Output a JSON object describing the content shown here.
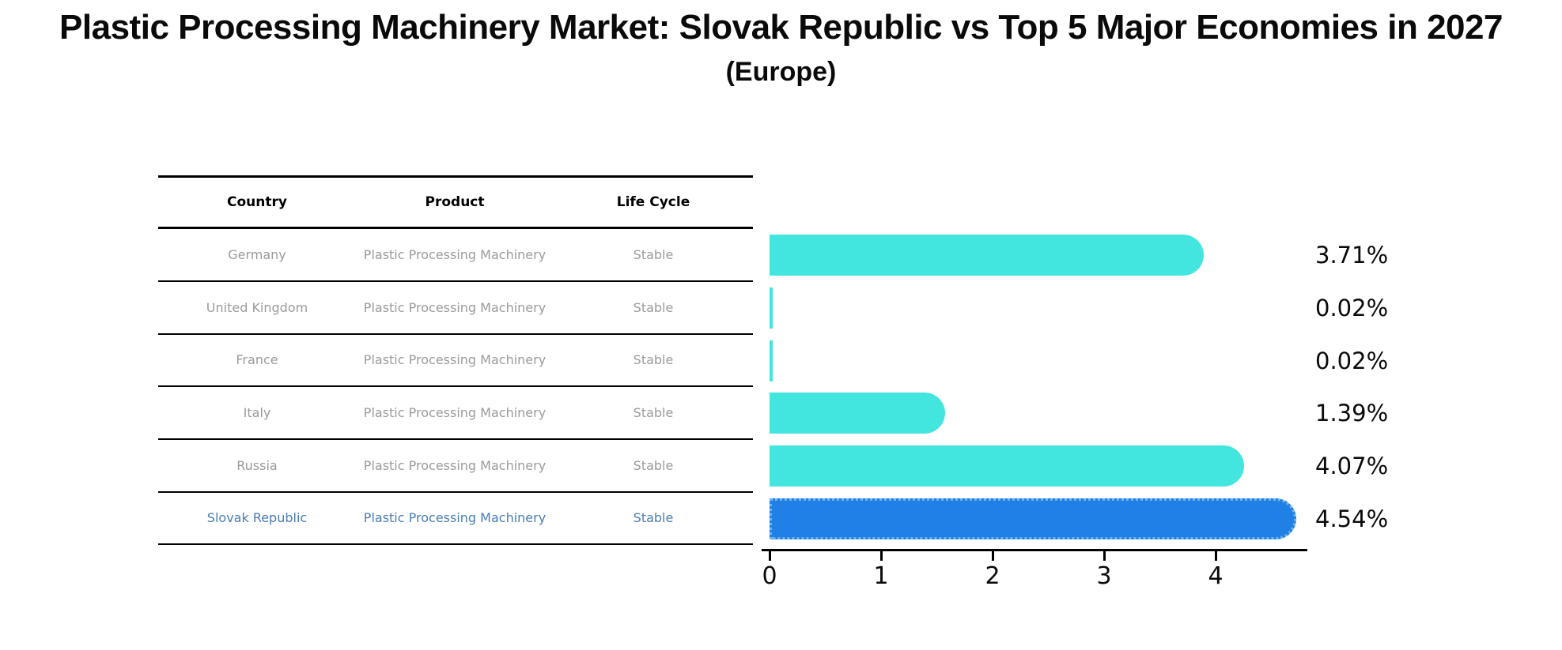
{
  "title": "Plastic Processing Machinery Market: Slovak Republic vs Top 5 Major Economies in 2027",
  "subtitle": "(Europe)",
  "table": {
    "columns": [
      "Country",
      "Product",
      "Life Cycle"
    ],
    "rows": [
      {
        "country": "Germany",
        "product": "Plastic Processing Machinery",
        "life_cycle": "Stable",
        "highlight": false
      },
      {
        "country": "United Kingdom",
        "product": "Plastic Processing Machinery",
        "life_cycle": "Stable",
        "highlight": false
      },
      {
        "country": "France",
        "product": "Plastic Processing Machinery",
        "life_cycle": "Stable",
        "highlight": false
      },
      {
        "country": "Italy",
        "product": "Plastic Processing Machinery",
        "life_cycle": "Stable",
        "highlight": false
      },
      {
        "country": "Russia",
        "product": "Plastic Processing Machinery",
        "life_cycle": "Stable",
        "highlight": false
      },
      {
        "country": "Slovak Republic",
        "product": "Plastic Processing Machinery",
        "life_cycle": "Stable",
        "highlight": true
      }
    ]
  },
  "chart_data": {
    "type": "bar",
    "orientation": "horizontal",
    "title": "Plastic Processing Machinery Market: Slovak Republic vs Top 5 Major Economies in 2027",
    "subtitle": "(Europe)",
    "categories": [
      "Germany",
      "United Kingdom",
      "France",
      "Italy",
      "Russia",
      "Slovak Republic"
    ],
    "values": [
      3.71,
      0.02,
      0.02,
      1.39,
      4.07,
      4.54
    ],
    "value_labels": [
      "3.71%",
      "0.02%",
      "0.02%",
      "1.39%",
      "4.07%",
      "4.54%"
    ],
    "xlabel": "",
    "ylabel": "",
    "xlim": [
      0,
      4.8
    ],
    "x_ticks": [
      0,
      1,
      2,
      3,
      4
    ],
    "grid": false,
    "legend": false,
    "highlight_index": 5,
    "highlight_category": "Slovak Republic"
  },
  "colors": {
    "bar": "#42E6DE",
    "highlight_bar": "#2080E6",
    "highlight_border": "#6FB3F2",
    "highlight_text": "#4A7DB5",
    "cell_text": "#9B9B9B",
    "header_text": "#000000",
    "axis": "#000000",
    "background": "#FFFFFF"
  }
}
